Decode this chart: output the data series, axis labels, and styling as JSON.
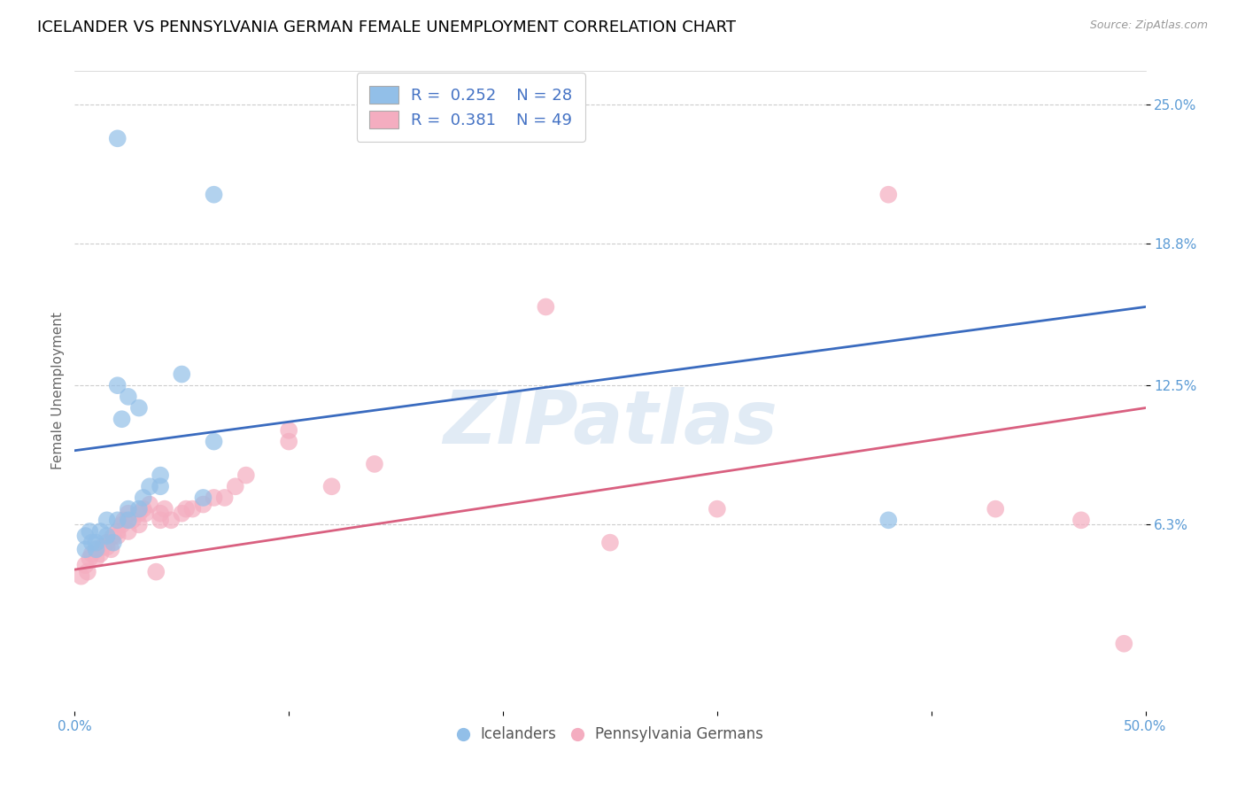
{
  "title": "ICELANDER VS PENNSYLVANIA GERMAN FEMALE UNEMPLOYMENT CORRELATION CHART",
  "source": "Source: ZipAtlas.com",
  "ylabel": "Female Unemployment",
  "ytick_vals": [
    0.063,
    0.125,
    0.188,
    0.25
  ],
  "ytick_labels": [
    "6.3%",
    "12.5%",
    "18.8%",
    "25.0%"
  ],
  "xlim": [
    0.0,
    0.5
  ],
  "ylim": [
    -0.02,
    0.265
  ],
  "watermark": "ZIPatlas",
  "blue_color": "#92bfe8",
  "pink_color": "#f4adc0",
  "line_blue": "#3a6bbf",
  "line_pink": "#d96080",
  "blue_line_x": [
    0.0,
    0.5
  ],
  "blue_line_y": [
    0.096,
    0.16
  ],
  "pink_line_x": [
    0.0,
    0.5
  ],
  "pink_line_y": [
    0.043,
    0.115
  ],
  "icelander_x": [
    0.005,
    0.005,
    0.007,
    0.008,
    0.01,
    0.01,
    0.012,
    0.015,
    0.015,
    0.018,
    0.02,
    0.02,
    0.022,
    0.025,
    0.025,
    0.025,
    0.03,
    0.03,
    0.032,
    0.035,
    0.04,
    0.04,
    0.05,
    0.06,
    0.065,
    0.38,
    0.02,
    0.065
  ],
  "icelander_y": [
    0.052,
    0.058,
    0.06,
    0.055,
    0.055,
    0.052,
    0.06,
    0.058,
    0.065,
    0.055,
    0.065,
    0.125,
    0.11,
    0.12,
    0.065,
    0.07,
    0.07,
    0.115,
    0.075,
    0.08,
    0.08,
    0.085,
    0.13,
    0.075,
    0.1,
    0.065,
    0.235,
    0.21
  ],
  "penn_x": [
    0.003,
    0.005,
    0.006,
    0.007,
    0.008,
    0.01,
    0.01,
    0.012,
    0.013,
    0.015,
    0.015,
    0.017,
    0.018,
    0.02,
    0.02,
    0.022,
    0.023,
    0.025,
    0.025,
    0.027,
    0.03,
    0.03,
    0.032,
    0.033,
    0.035,
    0.038,
    0.04,
    0.04,
    0.042,
    0.045,
    0.05,
    0.052,
    0.055,
    0.06,
    0.065,
    0.07,
    0.075,
    0.08,
    0.1,
    0.1,
    0.12,
    0.14,
    0.22,
    0.25,
    0.3,
    0.38,
    0.43,
    0.47,
    0.49
  ],
  "penn_y": [
    0.04,
    0.045,
    0.042,
    0.048,
    0.05,
    0.048,
    0.052,
    0.05,
    0.053,
    0.053,
    0.055,
    0.052,
    0.058,
    0.058,
    0.06,
    0.063,
    0.065,
    0.06,
    0.068,
    0.065,
    0.063,
    0.068,
    0.07,
    0.068,
    0.072,
    0.042,
    0.065,
    0.068,
    0.07,
    0.065,
    0.068,
    0.07,
    0.07,
    0.072,
    0.075,
    0.075,
    0.08,
    0.085,
    0.1,
    0.105,
    0.08,
    0.09,
    0.16,
    0.055,
    0.07,
    0.21,
    0.07,
    0.065,
    0.01
  ],
  "title_fontsize": 13,
  "tick_fontsize": 11,
  "ylabel_fontsize": 11
}
